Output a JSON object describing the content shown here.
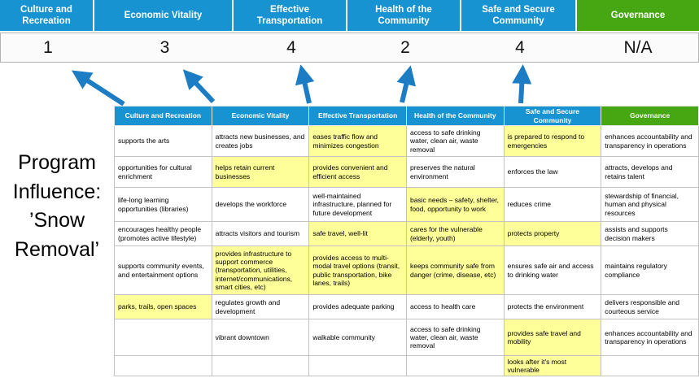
{
  "program": {
    "lines": [
      "Program",
      "Influence:",
      "’Snow",
      "Removal’"
    ]
  },
  "scoreboard": {
    "columns": [
      {
        "label": "Culture and Recreation",
        "score": "1"
      },
      {
        "label": "Economic Vitality",
        "score": "3"
      },
      {
        "label": "Effective Transportation",
        "score": "4"
      },
      {
        "label": "Health of the Community",
        "score": "2"
      },
      {
        "label": "Safe and Secure Community",
        "score": "4"
      },
      {
        "label": "Governance",
        "score": "N/A"
      }
    ]
  },
  "colors": {
    "header_blue": "#1893D2",
    "header_green": "#46A712",
    "highlight_yellow": "#FFFF99",
    "arrow_blue": "#1C7CC4"
  },
  "matrix": {
    "headers": [
      "Culture and Recreation",
      "Economic Vitality",
      "Effective Transportation",
      "Health of the Community",
      "Safe and Secure Community",
      "Governance"
    ],
    "rows": [
      {
        "cells": [
          {
            "text": "supports the arts",
            "highlight": false
          },
          {
            "text": "attracts new businesses, and creates jobs",
            "highlight": false
          },
          {
            "text": "eases traffic flow and minimizes congestion",
            "highlight": true
          },
          {
            "text": "access to safe drinking water, clean air, waste removal",
            "highlight": false
          },
          {
            "text": "is prepared to respond to emergencies",
            "highlight": true
          },
          {
            "text": "enhances accountability and transparency in operations",
            "highlight": false
          }
        ]
      },
      {
        "cells": [
          {
            "text": "opportunities for cultural enrichment",
            "highlight": false
          },
          {
            "text": "helps retain current businesses",
            "highlight": true
          },
          {
            "text": "provides convenient and efficient access",
            "highlight": true
          },
          {
            "text": "preserves the natural environment",
            "highlight": false
          },
          {
            "text": "enforces the law",
            "highlight": false
          },
          {
            "text": "attracts, develops and retains talent",
            "highlight": false
          }
        ]
      },
      {
        "cells": [
          {
            "text": "life-long learning opportunities (libraries)",
            "highlight": false
          },
          {
            "text": "develops the workforce",
            "highlight": false
          },
          {
            "text": "well-maintained infrastructure, planned for future development",
            "highlight": false
          },
          {
            "text": "basic needs – safety, shelter, food, opportunity to work",
            "highlight": true
          },
          {
            "text": "reduces crime",
            "highlight": false
          },
          {
            "text": "stewardship of financial, human and physical resources",
            "highlight": false
          }
        ]
      },
      {
        "cells": [
          {
            "text": "encourages healthy people (promotes active lifestyle)",
            "highlight": false
          },
          {
            "text": "attracts visitors and tourism",
            "highlight": false
          },
          {
            "text": "safe travel, well-lit",
            "highlight": true
          },
          {
            "text": "cares for the vulnerable (elderly, youth)",
            "highlight": true
          },
          {
            "text": "protects property",
            "highlight": true
          },
          {
            "text": "assists and supports decision makers",
            "highlight": false
          }
        ]
      },
      {
        "cells": [
          {
            "text": "supports community events, and entertainment options",
            "highlight": false
          },
          {
            "text": "provides infrastructure to support commerce (transportation, utilities, internet/communications, smart cities, etc)",
            "highlight": true
          },
          {
            "text": "provides access to multi-modal travel options (transit, public transportation, bike lanes, trails)",
            "highlight": true
          },
          {
            "text": "keeps community safe from danger (crime, disease, etc)",
            "highlight": true
          },
          {
            "text": "ensures safe air and access to drinking water",
            "highlight": false
          },
          {
            "text": "maintains regulatory compliance",
            "highlight": false
          }
        ]
      },
      {
        "cells": [
          {
            "text": "parks, trails, open spaces",
            "highlight": true
          },
          {
            "text": "regulates growth and development",
            "highlight": false
          },
          {
            "text": "provides adequate parking",
            "highlight": false
          },
          {
            "text": "access to health care",
            "highlight": false
          },
          {
            "text": "protects the environment",
            "highlight": false
          },
          {
            "text": "delivers responsible and courteous service",
            "highlight": false
          }
        ]
      },
      {
        "cells": [
          {
            "text": "",
            "highlight": false
          },
          {
            "text": "vibrant downtown",
            "highlight": false
          },
          {
            "text": "walkable community",
            "highlight": false
          },
          {
            "text": "access to safe drinking water, clean air, waste removal",
            "highlight": false
          },
          {
            "text": "provides safe travel and mobility",
            "highlight": true
          },
          {
            "text": "enhances accountability and transparency in operations",
            "highlight": false
          }
        ]
      },
      {
        "cells": [
          {
            "text": "",
            "highlight": false
          },
          {
            "text": "",
            "highlight": false
          },
          {
            "text": "",
            "highlight": false
          },
          {
            "text": "",
            "highlight": false
          },
          {
            "text": "looks after it's most vulnerable",
            "highlight": true
          },
          {
            "text": "",
            "highlight": false
          }
        ]
      }
    ]
  }
}
